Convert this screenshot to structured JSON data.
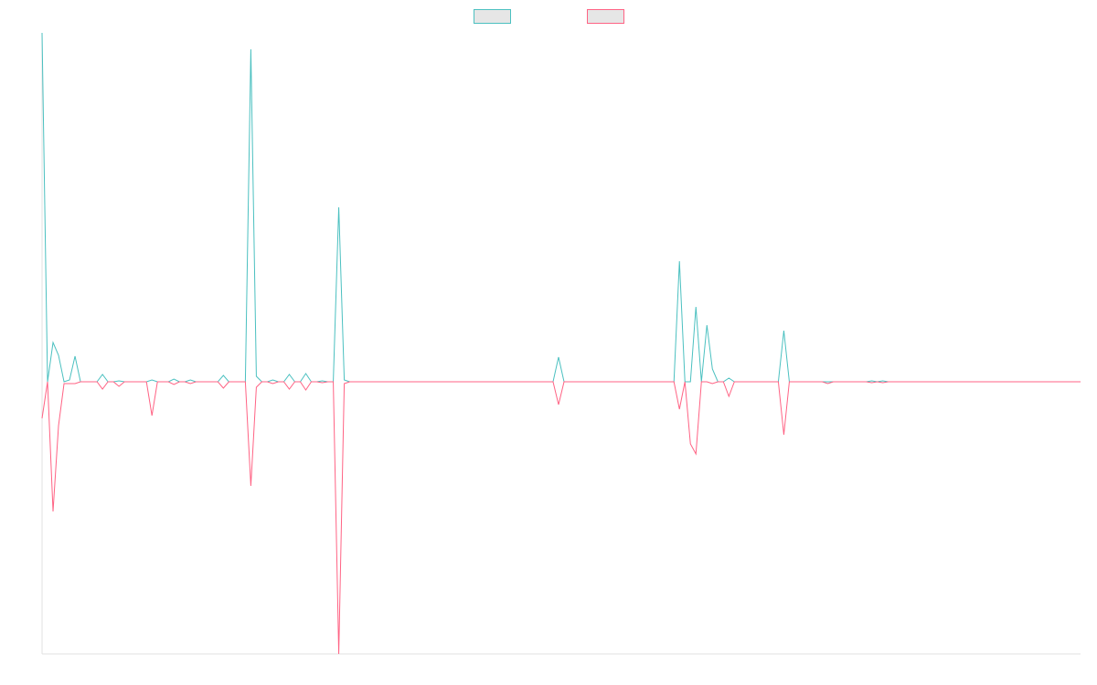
{
  "chart_data": {
    "type": "line",
    "x": [
      0,
      1,
      2,
      3,
      4,
      5,
      6,
      7,
      10,
      11,
      12,
      13,
      14,
      15,
      19,
      20,
      21,
      23,
      24,
      25,
      26,
      27,
      28,
      32,
      33,
      34,
      37,
      38,
      39,
      40,
      41,
      42,
      43,
      44,
      45,
      46,
      47,
      48,
      49,
      50,
      51,
      52,
      53,
      54,
      55,
      56,
      93,
      94,
      95,
      115,
      116,
      117,
      118,
      119,
      120,
      121,
      122,
      123,
      124,
      125,
      126,
      134,
      135,
      136,
      142,
      143,
      144,
      150,
      151,
      152,
      153,
      154,
      189
    ],
    "xlim": [
      0,
      189
    ],
    "ylim": [
      -298,
      382
    ],
    "series": [
      {
        "color": "#4bc0c0",
        "values": [
          382,
          0,
          43,
          29,
          0,
          2,
          28,
          0,
          0,
          8,
          0,
          0,
          1,
          0,
          0,
          2,
          0,
          0,
          3,
          0,
          0,
          2,
          0,
          0,
          7,
          0,
          0,
          364,
          6,
          0,
          0,
          2,
          0,
          0,
          8,
          0,
          0,
          9,
          0,
          0,
          1,
          0,
          0,
          191,
          2,
          0,
          0,
          27,
          0,
          0,
          132,
          0,
          0,
          82,
          0,
          62,
          14,
          0,
          0,
          4,
          0,
          0,
          56,
          0,
          0,
          0,
          0,
          0,
          1,
          0,
          1,
          0,
          0
        ]
      },
      {
        "color": "#ff6384",
        "values": [
          -40,
          0,
          -142,
          -48,
          -2,
          -2,
          -2,
          0,
          0,
          -8,
          0,
          0,
          -5,
          0,
          0,
          -37,
          0,
          0,
          -3,
          0,
          0,
          -2,
          0,
          0,
          -7,
          0,
          0,
          -114,
          -6,
          0,
          0,
          -2,
          0,
          0,
          -8,
          0,
          0,
          -9,
          0,
          0,
          -1,
          0,
          0,
          -298,
          -2,
          0,
          0,
          -25,
          0,
          0,
          -30,
          0,
          -68,
          -79,
          0,
          0,
          -2,
          0,
          0,
          -16,
          0,
          0,
          -58,
          0,
          0,
          -2,
          0,
          0,
          -1,
          0,
          -1,
          0,
          0
        ]
      }
    ]
  }
}
